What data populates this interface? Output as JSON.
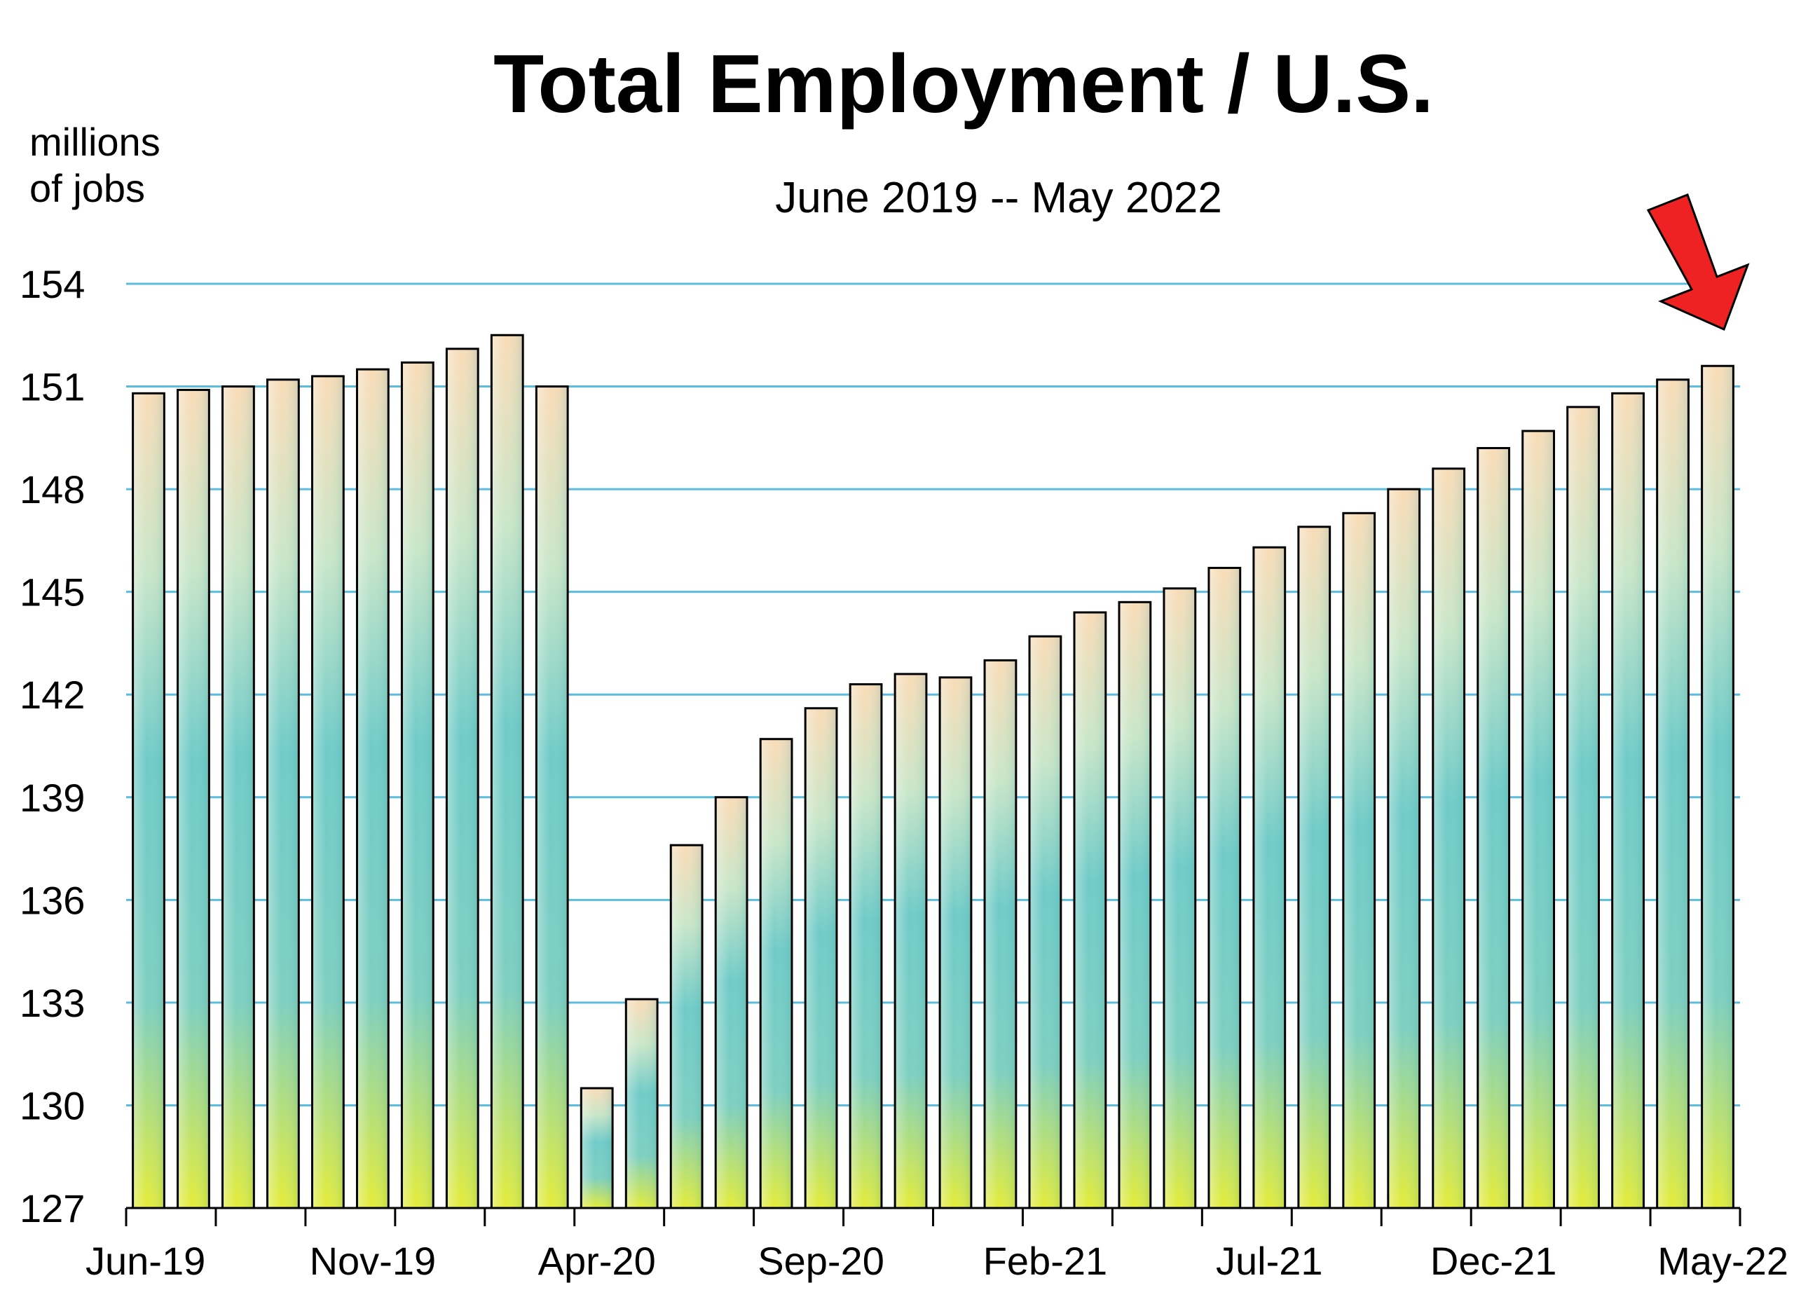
{
  "chart_data": {
    "type": "bar",
    "title": "Total Employment / U.S.",
    "subtitle": "June 2019 -- May 2022",
    "ylabel_line1": "millions",
    "ylabel_line2": "of jobs",
    "xlabel": "",
    "ylim": [
      127,
      154
    ],
    "yticks": [
      127,
      130,
      133,
      136,
      139,
      142,
      145,
      148,
      151,
      154
    ],
    "ytick_labels": [
      "127",
      "130",
      "133",
      "136",
      "139",
      "142",
      "145",
      "148",
      "151",
      "154"
    ],
    "grid": true,
    "categories": [
      "Jun-19",
      "Jul-19",
      "Aug-19",
      "Sep-19",
      "Oct-19",
      "Nov-19",
      "Dec-19",
      "Jan-20",
      "Feb-20",
      "Mar-20",
      "Apr-20",
      "May-20",
      "Jun-20",
      "Jul-20",
      "Aug-20",
      "Sep-20",
      "Oct-20",
      "Nov-20",
      "Dec-20",
      "Jan-21",
      "Feb-21",
      "Mar-21",
      "Apr-21",
      "May-21",
      "Jun-21",
      "Jul-21",
      "Aug-21",
      "Sep-21",
      "Oct-21",
      "Nov-21",
      "Dec-21",
      "Jan-22",
      "Feb-22",
      "Mar-22",
      "Apr-22",
      "May-22"
    ],
    "x_tick_labels": [
      "Jun-19",
      "Nov-19",
      "Apr-20",
      "Sep-20",
      "Feb-21",
      "Jul-21",
      "Dec-21",
      "May-22"
    ],
    "values": [
      150.8,
      150.9,
      151.0,
      151.2,
      151.3,
      151.5,
      151.7,
      152.1,
      152.5,
      151.0,
      130.5,
      133.1,
      137.6,
      139.0,
      140.7,
      141.6,
      142.3,
      142.6,
      142.5,
      143.0,
      143.7,
      144.4,
      144.7,
      145.1,
      145.7,
      146.3,
      146.9,
      147.3,
      148.0,
      148.6,
      149.2,
      149.7,
      150.4,
      150.8,
      151.2,
      151.6
    ],
    "colors": {
      "grid": "#5bbcdc",
      "bar_top": "#f8dcb8",
      "bar_mid": "#6fcbc8",
      "bar_bottom": "#e3ec3a",
      "bar_outline": "#000000",
      "arrow": "#ee2222"
    },
    "annotation": "red-arrow pointing at latest bar (May-22)"
  }
}
